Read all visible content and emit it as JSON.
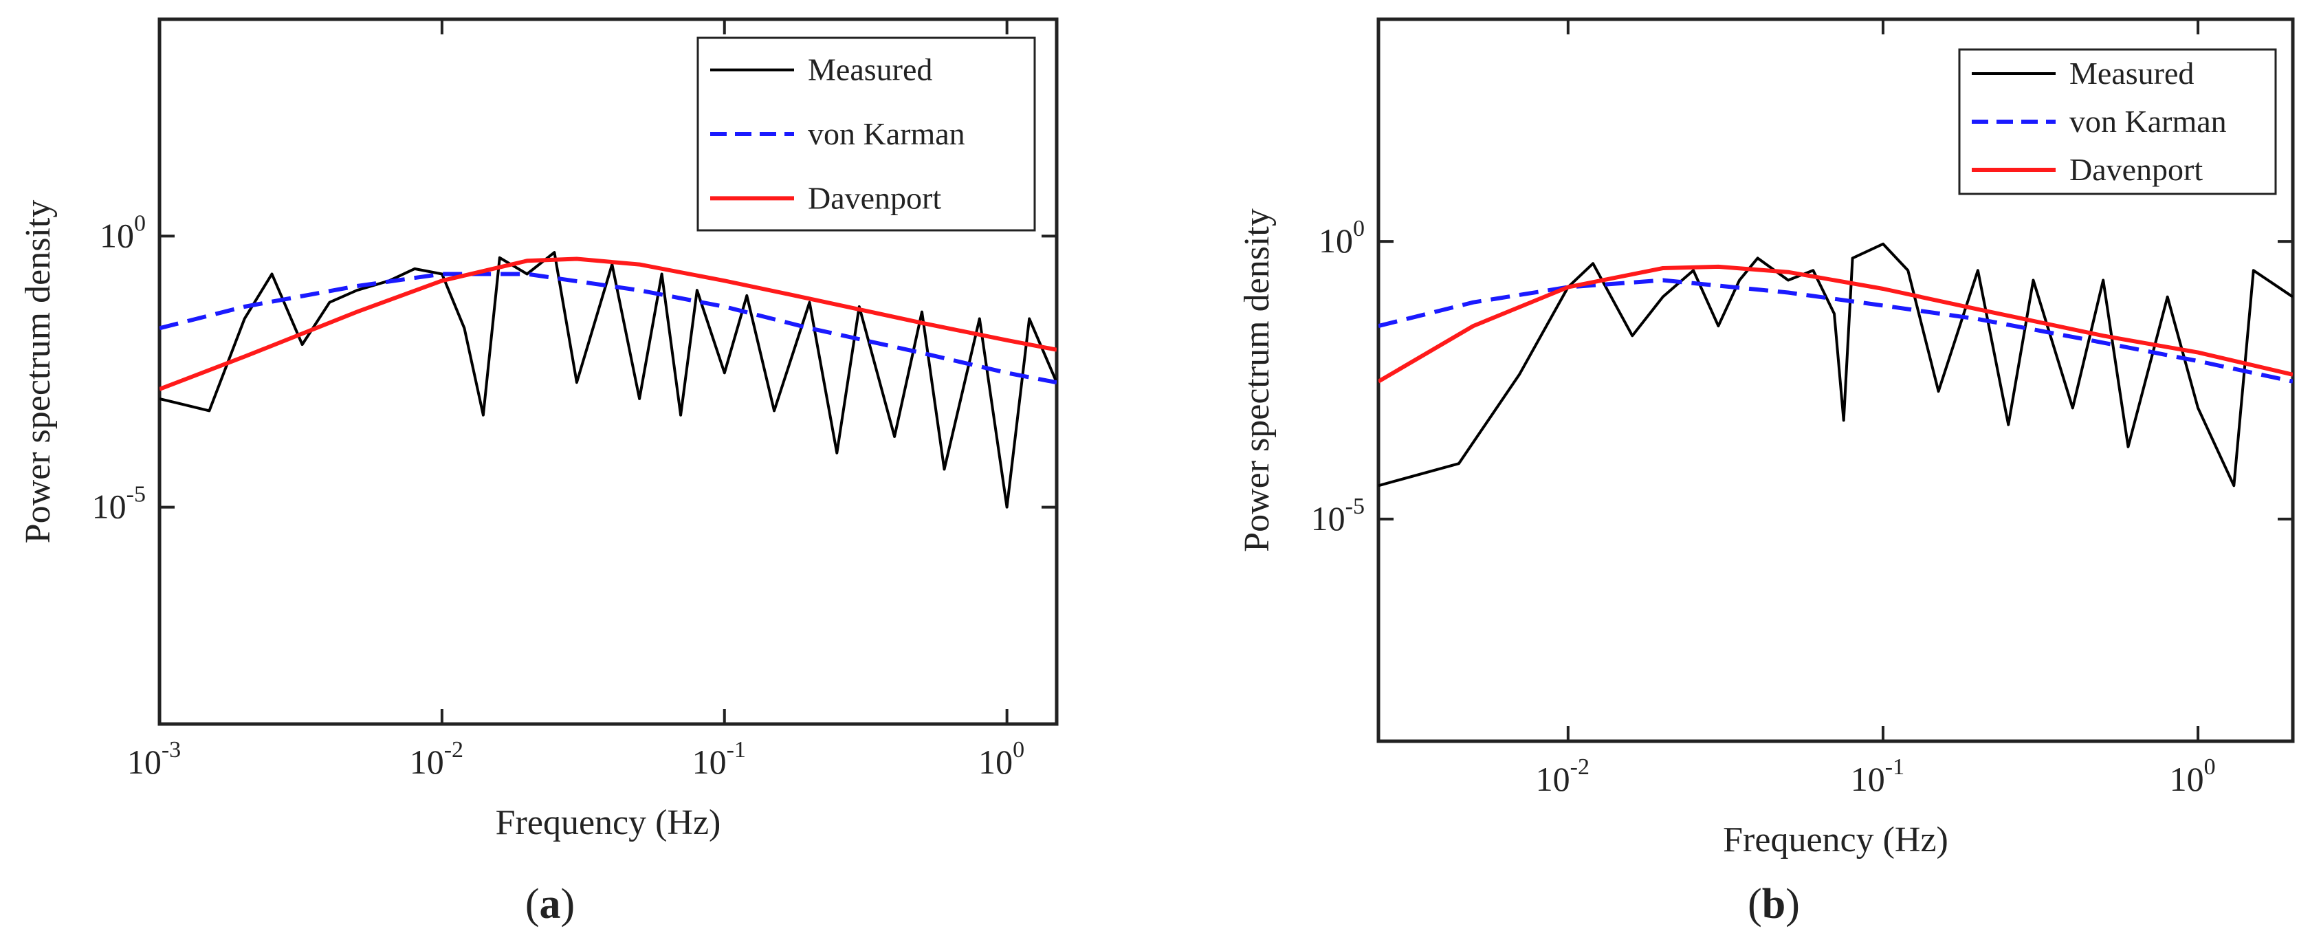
{
  "figure": {
    "panels": [
      "(a)",
      "(b)"
    ]
  },
  "chart_data": [
    {
      "type": "line",
      "panel_label": "(a)",
      "panel_letter": "a",
      "title": "",
      "xlabel": "Frequency (Hz)",
      "ylabel": "Power spectrum density",
      "xscale": "log",
      "yscale": "log",
      "xlim": [
        0.001,
        1.5
      ],
      "ylim": [
        1e-09,
        10000
      ],
      "xticks": [
        {
          "base": "10",
          "exp": "-3"
        },
        {
          "base": "10",
          "exp": "-2"
        },
        {
          "base": "10",
          "exp": "-1"
        },
        {
          "base": "10",
          "exp": "0"
        }
      ],
      "xtick_values": [
        0.001,
        0.01,
        0.1,
        1
      ],
      "yticks": [
        {
          "base": "10",
          "exp": "-5"
        },
        {
          "base": "10",
          "exp": "0"
        }
      ],
      "ytick_values": [
        1e-05,
        1
      ],
      "legend_position": "top-right",
      "legend": [
        "Measured",
        "von Karman",
        "Davenport"
      ],
      "series": [
        {
          "name": "Measured",
          "color": "#000000",
          "style": "solid",
          "x": [
            0.001,
            0.0015,
            0.002,
            0.0025,
            0.0032,
            0.004,
            0.005,
            0.0065,
            0.008,
            0.01,
            0.012,
            0.014,
            0.016,
            0.02,
            0.025,
            0.03,
            0.04,
            0.05,
            0.06,
            0.07,
            0.08,
            0.1,
            0.12,
            0.15,
            0.2,
            0.25,
            0.3,
            0.4,
            0.5,
            0.6,
            0.8,
            1.0,
            1.2,
            1.5
          ],
          "values": [
            0.001,
            0.0006,
            0.03,
            0.2,
            0.01,
            0.06,
            0.1,
            0.15,
            0.25,
            0.2,
            0.02,
            0.0005,
            0.4,
            0.2,
            0.5,
            0.002,
            0.3,
            0.001,
            0.2,
            0.0005,
            0.1,
            0.003,
            0.08,
            0.0006,
            0.06,
            0.0001,
            0.05,
            0.0002,
            0.04,
            5e-05,
            0.03,
            1e-05,
            0.03,
            0.002
          ],
          "note": "noisy envelope; points shown are a coarse trace of the visible measurement"
        },
        {
          "name": "von Karman",
          "color": "#1a1aff",
          "style": "dashed",
          "x": [
            0.001,
            0.002,
            0.005,
            0.01,
            0.02,
            0.05,
            0.1,
            0.2,
            0.5,
            1.0,
            1.5
          ],
          "values": [
            0.02,
            0.05,
            0.12,
            0.2,
            0.2,
            0.1,
            0.05,
            0.02,
            0.007,
            0.003,
            0.002
          ]
        },
        {
          "name": "Davenport",
          "color": "#ff1a1a",
          "style": "solid",
          "x": [
            0.001,
            0.002,
            0.005,
            0.01,
            0.02,
            0.03,
            0.05,
            0.1,
            0.2,
            0.5,
            1.0,
            1.5
          ],
          "values": [
            0.0015,
            0.006,
            0.04,
            0.15,
            0.35,
            0.38,
            0.3,
            0.15,
            0.07,
            0.025,
            0.012,
            0.008
          ]
        }
      ]
    },
    {
      "type": "line",
      "panel_label": "(b)",
      "panel_letter": "b",
      "title": "",
      "xlabel": "Frequency (Hz)",
      "ylabel": "Power spectrum density",
      "xscale": "log",
      "yscale": "log",
      "xlim": [
        0.0025,
        2.0
      ],
      "ylim": [
        1e-09,
        10000
      ],
      "xticks": [
        {
          "base": "10",
          "exp": "-2"
        },
        {
          "base": "10",
          "exp": "-1"
        },
        {
          "base": "10",
          "exp": "0"
        }
      ],
      "xtick_values": [
        0.01,
        0.1,
        1
      ],
      "yticks": [
        {
          "base": "10",
          "exp": "-5"
        },
        {
          "base": "10",
          "exp": "0"
        }
      ],
      "ytick_values": [
        1e-05,
        1
      ],
      "legend_position": "top-right",
      "legend": [
        "Measured",
        "von Karman",
        "Davenport"
      ],
      "series": [
        {
          "name": "Measured",
          "color": "#000000",
          "style": "solid",
          "x": [
            0.0025,
            0.0045,
            0.007,
            0.01,
            0.012,
            0.016,
            0.02,
            0.025,
            0.03,
            0.035,
            0.04,
            0.05,
            0.06,
            0.07,
            0.075,
            0.08,
            0.1,
            0.12,
            0.15,
            0.2,
            0.25,
            0.3,
            0.4,
            0.5,
            0.6,
            0.8,
            1.0,
            1.3,
            1.5,
            2.0
          ],
          "values": [
            4e-05,
            0.0001,
            0.004,
            0.15,
            0.4,
            0.02,
            0.1,
            0.3,
            0.03,
            0.2,
            0.5,
            0.2,
            0.3,
            0.05,
            0.0006,
            0.5,
            0.9,
            0.3,
            0.002,
            0.3,
            0.0005,
            0.2,
            0.001,
            0.2,
            0.0002,
            0.1,
            0.001,
            4e-05,
            0.3,
            0.1
          ],
          "note": "noisy envelope; points shown are a coarse trace of the visible measurement"
        },
        {
          "name": "von Karman",
          "color": "#1a1aff",
          "style": "dashed",
          "x": [
            0.0025,
            0.005,
            0.01,
            0.02,
            0.05,
            0.1,
            0.2,
            0.5,
            1.0,
            2.0
          ],
          "values": [
            0.03,
            0.08,
            0.15,
            0.2,
            0.12,
            0.07,
            0.04,
            0.015,
            0.007,
            0.003
          ]
        },
        {
          "name": "Davenport",
          "color": "#ff1a1a",
          "style": "solid",
          "x": [
            0.0025,
            0.005,
            0.01,
            0.02,
            0.03,
            0.05,
            0.1,
            0.2,
            0.5,
            1.0,
            2.0
          ],
          "values": [
            0.003,
            0.03,
            0.15,
            0.33,
            0.35,
            0.28,
            0.14,
            0.06,
            0.02,
            0.01,
            0.004
          ]
        }
      ]
    }
  ]
}
